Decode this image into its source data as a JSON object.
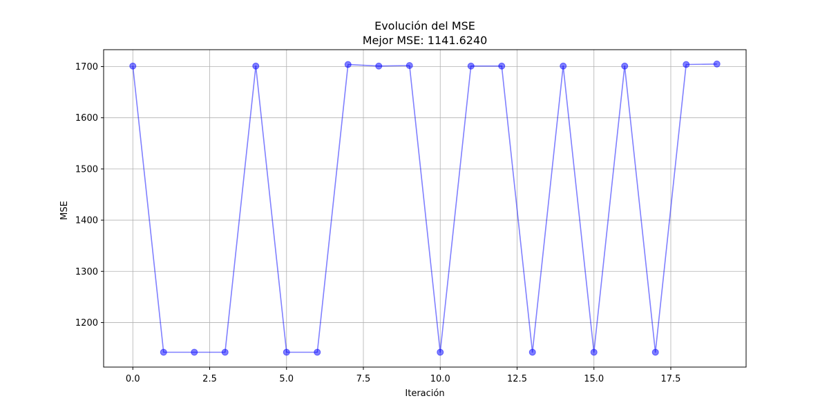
{
  "chart_data": {
    "type": "line",
    "title": "Evolución del MSE",
    "subtitle": "Mejor MSE: 1141.6240",
    "xlabel": "Iteración",
    "ylabel": "MSE",
    "xlim": [
      -0.95,
      19.95
    ],
    "ylim": [
      1113,
      1733
    ],
    "xticks": [
      0,
      2.5,
      5,
      7.5,
      10,
      12.5,
      15,
      17.5
    ],
    "xtick_labels": [
      "0.0",
      "2.5",
      "5.0",
      "7.5",
      "10.0",
      "12.5",
      "15.0",
      "17.5"
    ],
    "yticks": [
      1200,
      1300,
      1400,
      1500,
      1600,
      1700
    ],
    "ytick_labels": [
      "1200",
      "1300",
      "1400",
      "1500",
      "1600",
      "1700"
    ],
    "grid": true,
    "series": [
      {
        "color": "#0000ff",
        "marker": "circle",
        "x": [
          0,
          1,
          2,
          3,
          4,
          5,
          6,
          7,
          8,
          9,
          10,
          11,
          12,
          13,
          14,
          15,
          16,
          17,
          18,
          19
        ],
        "values": [
          1701,
          1142,
          1142,
          1142,
          1701,
          1142,
          1142,
          1704,
          1701,
          1702,
          1142,
          1701,
          1701,
          1142,
          1701,
          1142,
          1701,
          1142,
          1704,
          1705
        ]
      }
    ]
  }
}
